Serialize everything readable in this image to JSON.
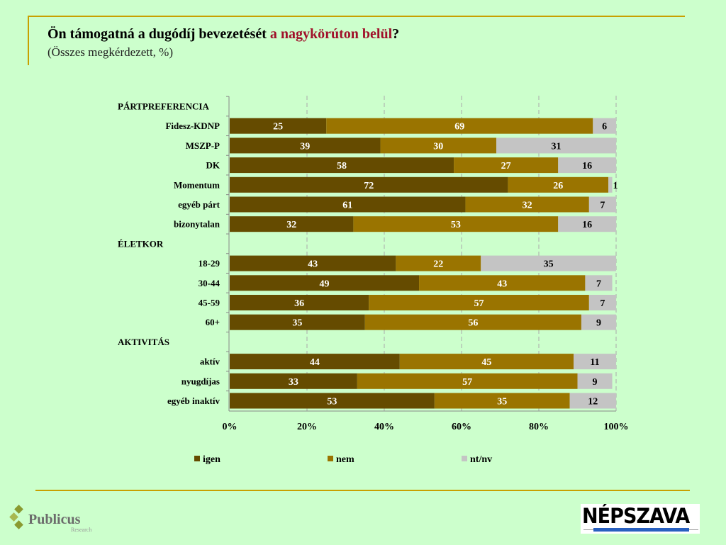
{
  "header": {
    "title_main": "Ön támogatná a dugódíj bevezetését ",
    "title_highlight": "a nagykörúton belül",
    "title_end": "?",
    "subtitle": "(Összes megkérdezett, %)"
  },
  "logos": {
    "left": "Publicus Research",
    "right": "NÉPSZAVA"
  },
  "chart_data": {
    "type": "bar",
    "orientation": "horizontal",
    "stacked": "percent",
    "xlim": [
      0,
      100
    ],
    "xticks": [
      "0%",
      "20%",
      "40%",
      "60%",
      "80%",
      "100%"
    ],
    "grid": true,
    "legend_position": "bottom",
    "colors": {
      "igen": "#654b00",
      "nem": "#9a7400",
      "nt/nv": "#c4c4c4"
    },
    "series_names": [
      "igen",
      "nem",
      "nt/nv"
    ],
    "rows": [
      {
        "label": "PÁRTPREFERENCIA",
        "header": true
      },
      {
        "label": "Fidesz-KDNP",
        "values": [
          25,
          69,
          6
        ]
      },
      {
        "label": "MSZP-P",
        "values": [
          39,
          30,
          31
        ]
      },
      {
        "label": "DK",
        "values": [
          58,
          27,
          16
        ]
      },
      {
        "label": "Momentum",
        "values": [
          72,
          26,
          1
        ]
      },
      {
        "label": "egyéb párt",
        "values": [
          61,
          32,
          7
        ]
      },
      {
        "label": "bizonytalan",
        "values": [
          32,
          53,
          16
        ]
      },
      {
        "label": "ÉLETKOR",
        "header": true
      },
      {
        "label": "18-29",
        "values": [
          43,
          22,
          35
        ]
      },
      {
        "label": "30-44",
        "values": [
          49,
          43,
          7
        ]
      },
      {
        "label": "45-59",
        "values": [
          36,
          57,
          7
        ]
      },
      {
        "label": "60+",
        "values": [
          35,
          56,
          9
        ]
      },
      {
        "label": "AKTIVITÁS",
        "header": true
      },
      {
        "label": "aktív",
        "values": [
          44,
          45,
          11
        ]
      },
      {
        "label": "nyugdíjas",
        "values": [
          33,
          57,
          9
        ]
      },
      {
        "label": "egyéb inaktív",
        "values": [
          53,
          35,
          12
        ]
      }
    ]
  }
}
